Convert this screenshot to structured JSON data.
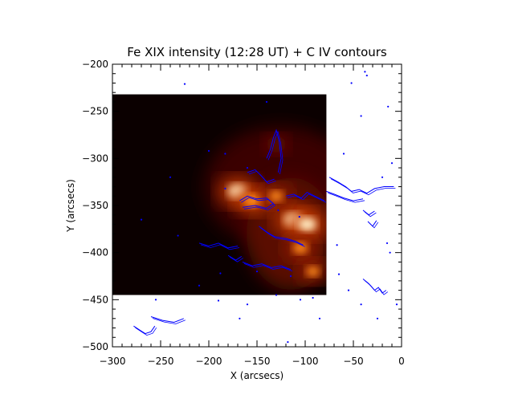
{
  "chart_data": {
    "type": "heatmap",
    "title": "Fe XIX intensity (12:28 UT) + C IV contours",
    "xlabel": "X (arcsecs)",
    "ylabel": "Y (arcsecs)",
    "xlim": [
      -300,
      0
    ],
    "ylim": [
      -500,
      -200
    ],
    "xticks": [
      -300,
      -250,
      -200,
      -150,
      -100,
      -50,
      0
    ],
    "yticks": [
      -200,
      -250,
      -300,
      -350,
      -400,
      -450,
      -500
    ],
    "xtick_labels": [
      "−300",
      "−250",
      "−200",
      "−150",
      "−100",
      "−50",
      "0"
    ],
    "ytick_labels": [
      "−200",
      "−250",
      "−300",
      "−350",
      "−400",
      "−450",
      "−500"
    ],
    "image_extent": {
      "x": [
        -300,
        -78
      ],
      "y": [
        -445,
        -232
      ]
    },
    "colormap": "hot (black-red-orange-white)",
    "contour_color": "#0000ff",
    "grid": false,
    "bright_features": [
      {
        "x": -170,
        "y": -335,
        "level": 1.0
      },
      {
        "x": -155,
        "y": -345,
        "level": 0.85
      },
      {
        "x": -112,
        "y": -365,
        "level": 1.0
      },
      {
        "x": -98,
        "y": -370,
        "level": 0.95
      },
      {
        "x": -105,
        "y": -395,
        "level": 0.7
      },
      {
        "x": -92,
        "y": -420,
        "level": 0.55
      },
      {
        "x": -130,
        "y": -340,
        "level": 0.6
      },
      {
        "x": -130,
        "y": -285,
        "level": 0.35
      }
    ]
  }
}
